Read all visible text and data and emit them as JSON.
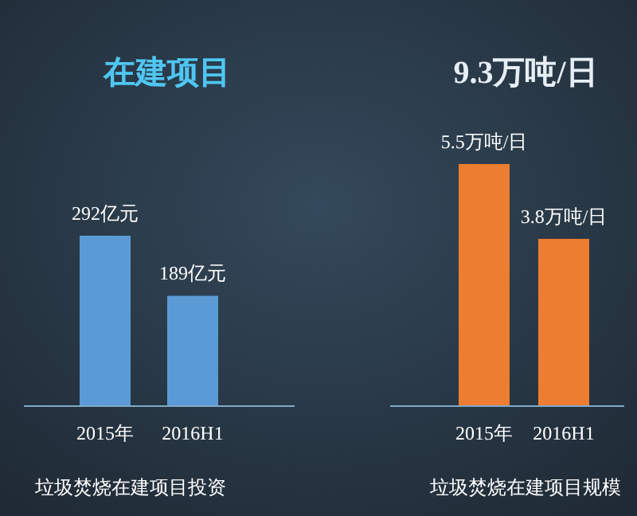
{
  "chart_data": [
    {
      "type": "bar",
      "title": "在建项目",
      "categories": [
        "2015年",
        "2016H1"
      ],
      "values": [
        292,
        189
      ],
      "value_labels": [
        "292亿元",
        "189亿元"
      ],
      "color": "#5b9bd5",
      "annotations": [
        "垃圾焚烧在建项目投资"
      ]
    },
    {
      "type": "bar",
      "title": "9.3万吨/日",
      "categories": [
        "2015年",
        "2016H1"
      ],
      "values": [
        5.5,
        3.8
      ],
      "value_labels": [
        "5.5万吨/日",
        "3.8万吨/日"
      ],
      "color": "#ed7d31",
      "annotations": [
        "垃圾焚烧在建项目规模"
      ]
    }
  ]
}
